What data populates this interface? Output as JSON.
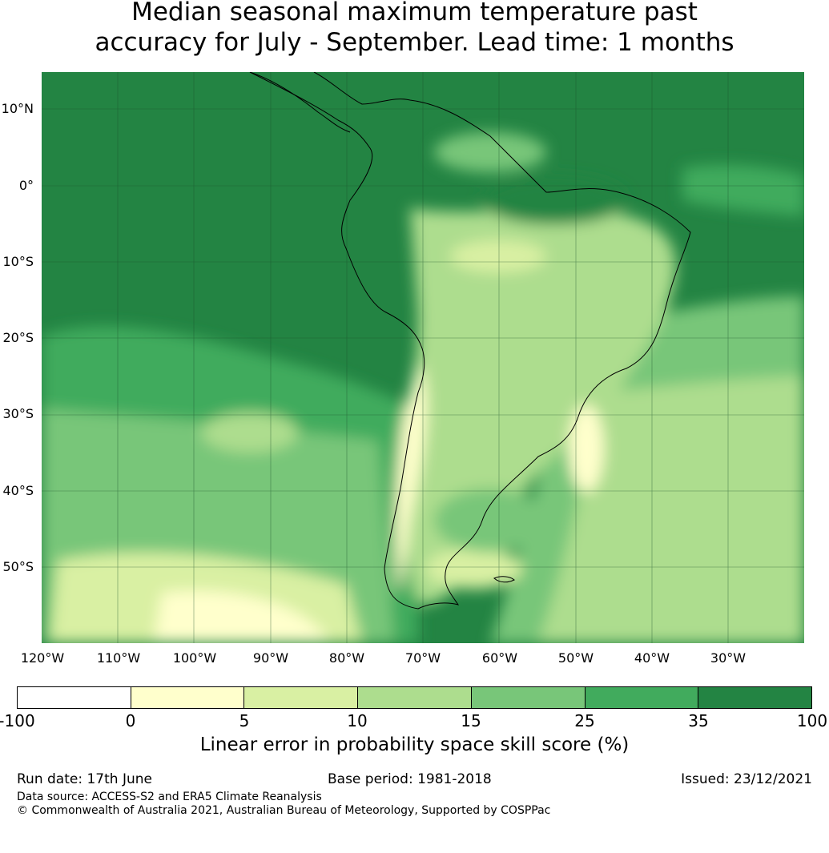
{
  "title": {
    "line1": "Median seasonal maximum temperature past",
    "line2": "accuracy for July - September. Lead time: 1 months"
  },
  "map": {
    "lat_labels": [
      "10°N",
      "0°",
      "10°S",
      "20°S",
      "30°S",
      "40°S",
      "50°S"
    ],
    "lon_labels": [
      "120°W",
      "110°W",
      "100°W",
      "90°W",
      "80°W",
      "70°W",
      "60°W",
      "50°W",
      "40°W",
      "30°W"
    ]
  },
  "colorbar": {
    "ticks": [
      "-100",
      "0",
      "5",
      "10",
      "15",
      "25",
      "35",
      "100"
    ],
    "colors": [
      "#ffffff",
      "#ffffcc",
      "#d9f0a3",
      "#addd8e",
      "#78c679",
      "#41ab5d",
      "#238443"
    ],
    "label": "Linear error in probability space skill score (%)"
  },
  "footer": {
    "run_date": "Run date: 17th June",
    "base_period": "Base period: 1981-2018",
    "issued": "Issued: 23/12/2021",
    "data_source": "Data source: ACCESS-S2 and ERA5 Climate Reanalysis",
    "copyright": "© Commonwealth of Australia 2021, Australian Bureau of Meteorology, Supported by COSPPac"
  }
}
